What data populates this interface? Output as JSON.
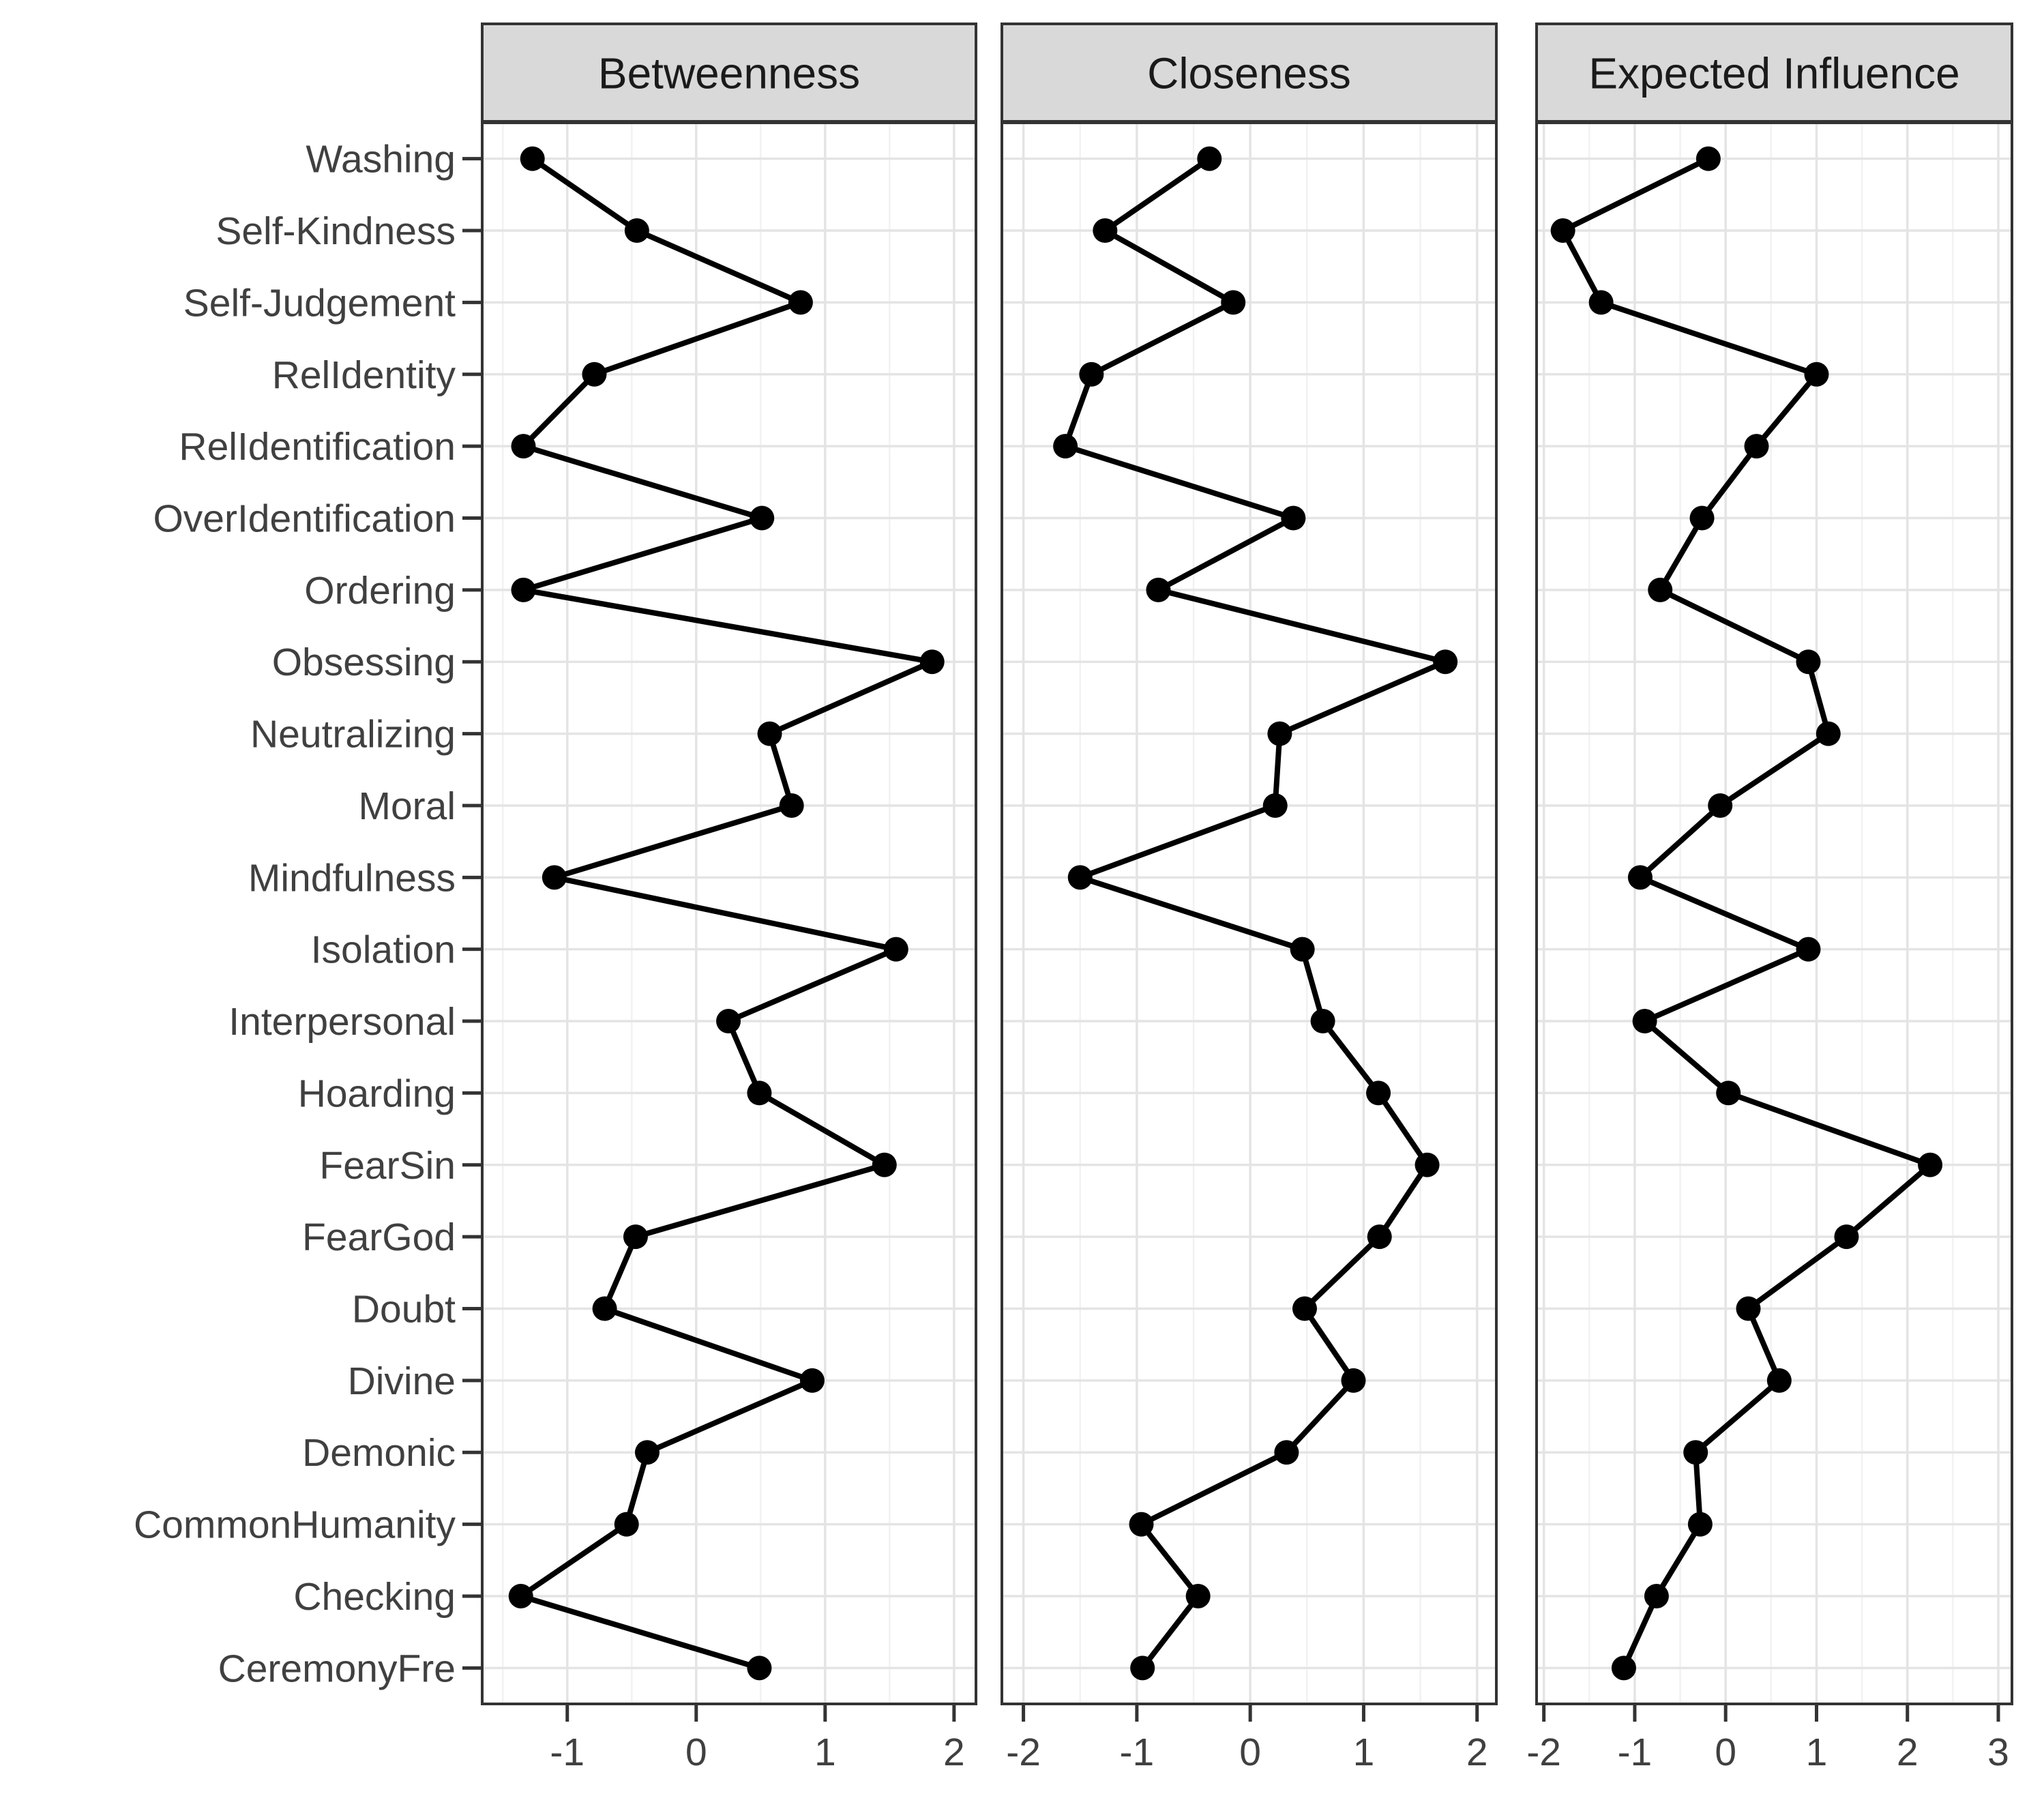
{
  "chart_data": {
    "type": "line",
    "subtype": "faceted-centrality-dot-line-plot",
    "orientation": "horizontal",
    "grid": "on",
    "legend": "none",
    "categories_top_to_bottom": [
      "Washing",
      "Self-Kindness",
      "Self-Judgement",
      "RelIdentity",
      "RelIdentification",
      "OverIdentification",
      "Ordering",
      "Obsessing",
      "Neutralizing",
      "Moral",
      "Mindfulness",
      "Isolation",
      "Interpersonal",
      "Hoarding",
      "FearSin",
      "FearGod",
      "Doubt",
      "Divine",
      "Demonic",
      "CommonHumanity",
      "Checking",
      "CeremonyFre"
    ],
    "panels": [
      {
        "title": "Betweenness",
        "xlim": [
          -1.66,
          2.17
        ],
        "ticks": [
          -1,
          0,
          1,
          2
        ],
        "values": [
          -1.27,
          -0.46,
          0.81,
          -0.79,
          -1.34,
          0.51,
          -1.34,
          1.83,
          0.57,
          0.74,
          -1.1,
          1.55,
          0.25,
          0.49,
          1.46,
          -0.47,
          -0.71,
          0.9,
          -0.38,
          -0.54,
          -1.36,
          0.49
        ]
      },
      {
        "title": "Closeness",
        "xlim": [
          -2.19,
          2.17
        ],
        "ticks": [
          -2,
          -1,
          0,
          1,
          2
        ],
        "values": [
          -0.36,
          -1.28,
          -0.15,
          -1.4,
          -1.63,
          0.38,
          -0.81,
          1.72,
          0.26,
          0.22,
          -1.5,
          0.46,
          0.64,
          1.13,
          1.56,
          1.14,
          0.48,
          0.91,
          0.32,
          -0.96,
          -0.46,
          -0.95
        ]
      },
      {
        "title": "Expected Influence",
        "xlim": [
          -2.08,
          3.15
        ],
        "ticks": [
          -2,
          -1,
          0,
          1,
          2,
          3
        ],
        "values": [
          -0.19,
          -1.79,
          -1.37,
          1.0,
          0.34,
          -0.26,
          -0.72,
          0.91,
          1.13,
          -0.06,
          -0.94,
          0.91,
          -0.89,
          0.03,
          2.25,
          1.33,
          0.25,
          0.59,
          -0.33,
          -0.28,
          -0.76,
          -1.12
        ]
      }
    ],
    "colors": {
      "point": "#000000",
      "line": "#000000",
      "strip_fill": "#d9d9d9",
      "panel_border": "#333333",
      "strip_border": "#333333",
      "grid_major": "#e4e4e4",
      "grid_minor": "#f2f2f2",
      "axis_text": "#404040",
      "strip_text": "#1a1a1a",
      "tick_mark": "#333333"
    }
  }
}
